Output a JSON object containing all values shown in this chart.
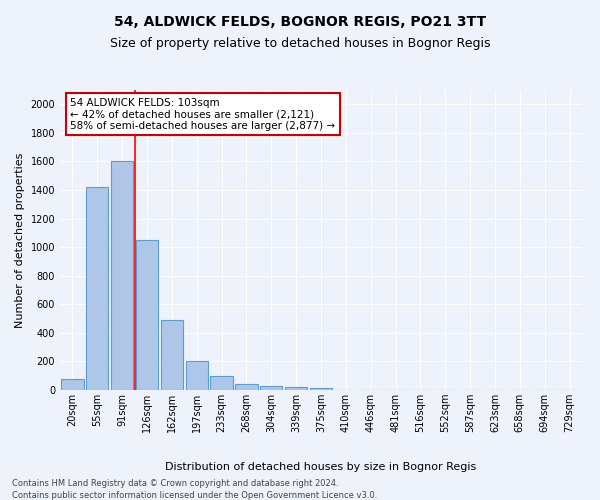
{
  "title1": "54, ALDWICK FELDS, BOGNOR REGIS, PO21 3TT",
  "title2": "Size of property relative to detached houses in Bognor Regis",
  "xlabel": "Distribution of detached houses by size in Bognor Regis",
  "ylabel": "Number of detached properties",
  "footnote1": "Contains HM Land Registry data © Crown copyright and database right 2024.",
  "footnote2": "Contains public sector information licensed under the Open Government Licence v3.0.",
  "annotation_line1": "54 ALDWICK FELDS: 103sqm",
  "annotation_line2": "← 42% of detached houses are smaller (2,121)",
  "annotation_line3": "58% of semi-detached houses are larger (2,877) →",
  "bar_labels": [
    "20sqm",
    "55sqm",
    "91sqm",
    "126sqm",
    "162sqm",
    "197sqm",
    "233sqm",
    "268sqm",
    "304sqm",
    "339sqm",
    "375sqm",
    "410sqm",
    "446sqm",
    "481sqm",
    "516sqm",
    "552sqm",
    "587sqm",
    "623sqm",
    "658sqm",
    "694sqm",
    "729sqm"
  ],
  "bar_values": [
    80,
    1420,
    1600,
    1050,
    490,
    200,
    100,
    40,
    25,
    20,
    15,
    0,
    0,
    0,
    0,
    0,
    0,
    0,
    0,
    0,
    0
  ],
  "bar_color": "#aec6e8",
  "bar_edge_color": "#5a9fd4",
  "red_line_x": 2.5,
  "ylim": [
    0,
    2100
  ],
  "yticks": [
    0,
    200,
    400,
    600,
    800,
    1000,
    1200,
    1400,
    1600,
    1800,
    2000
  ],
  "background_color": "#eef2fb",
  "grid_color": "#ffffff",
  "annotation_box_color": "#ffffff",
  "annotation_box_edge": "#cc0000",
  "title1_fontsize": 10,
  "title2_fontsize": 9,
  "ylabel_fontsize": 8,
  "xlabel_fontsize": 8,
  "tick_fontsize": 7,
  "footnote_fontsize": 6
}
